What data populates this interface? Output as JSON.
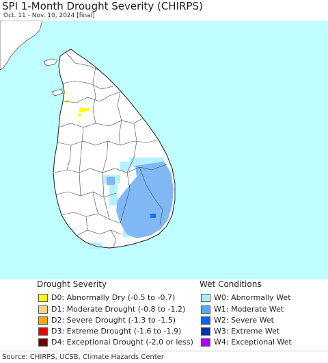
{
  "title": "SPI 1-Month Drought Severity (CHIRPS)",
  "subtitle": "Oct. 11 - Nov. 10, 2024 [final]",
  "source": "Source: CHIRPS, UCSB, Climate Hazards Center",
  "colors": {
    "ocean": "#bfffff",
    "land": "#ffffff",
    "india": "#ffffff",
    "border": "#555555",
    "dry": "#ffff00",
    "w0": "#b4f0ff",
    "w1": "#7fb8f5",
    "w2": "#1e6eff"
  },
  "legend": {
    "drought_title": "Drought Severity",
    "wet_title": "Wet Conditions",
    "drought": [
      {
        "label": "D0: Abnormally Dry (-0.5 to -0.7)",
        "color": "#ffff00"
      },
      {
        "label": "D1: Moderate Drought (-0.8 to -1.2)",
        "color": "#fcd37f"
      },
      {
        "label": "D2: Severe Drought (-1.3 to -1.5)",
        "color": "#ffaa00"
      },
      {
        "label": "D3: Extreme Drought (-1.6 to -1.9)",
        "color": "#e60000"
      },
      {
        "label": "D4: Exceptional Drought (-2.0 or less)",
        "color": "#730000"
      }
    ],
    "wet": [
      {
        "label": "W0: Abnormally Wet",
        "color": "#aaf0ff"
      },
      {
        "label": "W1: Moderate Wet",
        "color": "#55aaff"
      },
      {
        "label": "W2: Severe Wet",
        "color": "#0066ff"
      },
      {
        "label": "W3: Extreme Wet",
        "color": "#0033aa"
      },
      {
        "label": "W4: Exceptional Wet",
        "color": "#aa00ff"
      }
    ]
  }
}
